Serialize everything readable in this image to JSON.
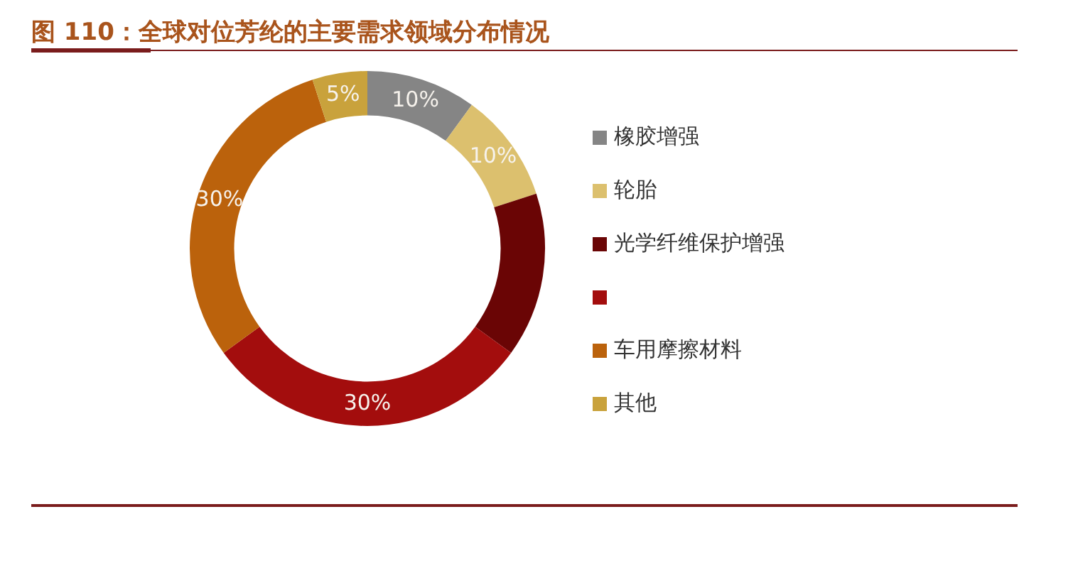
{
  "chart_data": {
    "type": "donut",
    "title": "图 110：全球对位芳纶的主要需求领域分布情况",
    "categories": [
      "橡胶增强",
      "轮胎",
      "光学纤维保护增强",
      null,
      "车用摩擦材料",
      "其他"
    ],
    "values": [
      10,
      10,
      15,
      30,
      30,
      5
    ],
    "colors": [
      "#858585",
      "#dcc06e",
      "#6a0505",
      "#a30d0d",
      "#bb620c",
      "#c9a23c"
    ],
    "value_labels": [
      "10%",
      "10%",
      null,
      "30%",
      "30%",
      "5%"
    ],
    "legend": "right"
  }
}
